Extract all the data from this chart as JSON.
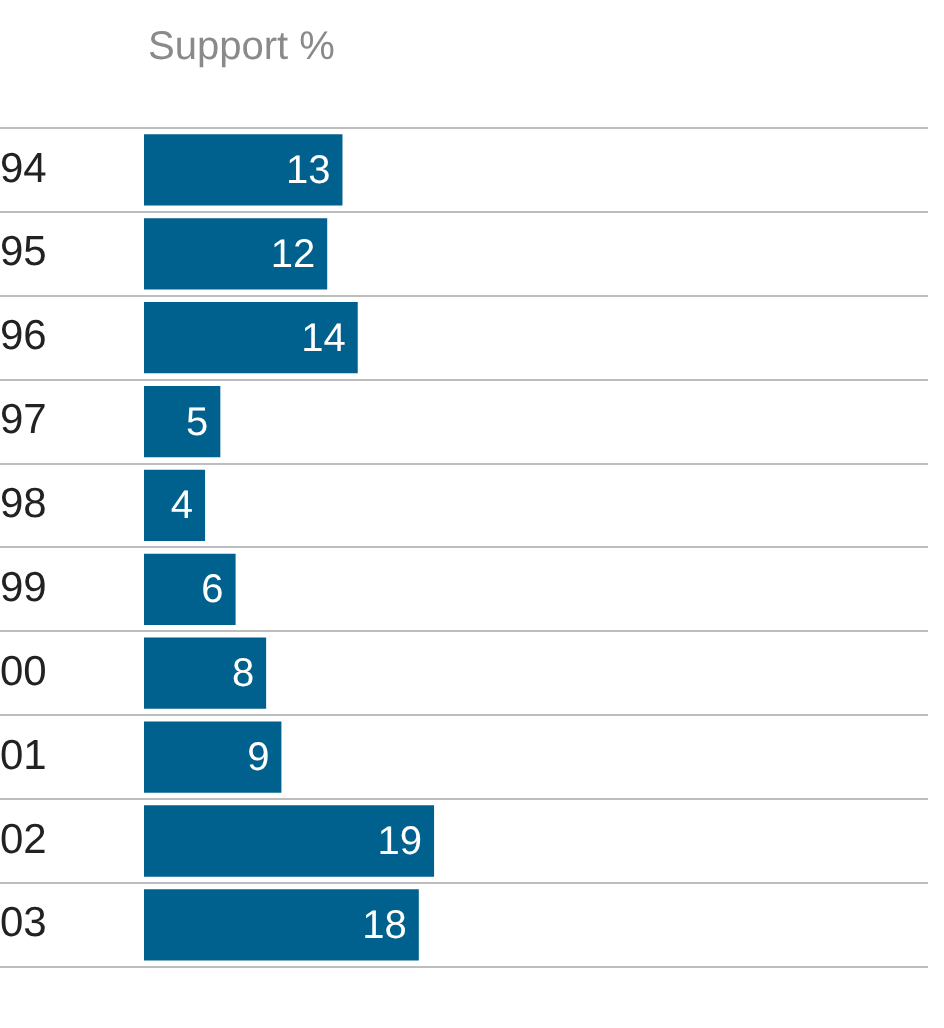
{
  "chart_data": {
    "type": "bar",
    "orientation": "horizontal",
    "title": "Support %",
    "categories": [
      "94",
      "95",
      "96",
      "97",
      "98",
      "99",
      "00",
      "01",
      "02",
      "03"
    ],
    "values": [
      13,
      12,
      14,
      5,
      4,
      6,
      8,
      9,
      19,
      18
    ],
    "color": "#00618e",
    "data_labels": true,
    "grid": "y",
    "legend": false
  }
}
